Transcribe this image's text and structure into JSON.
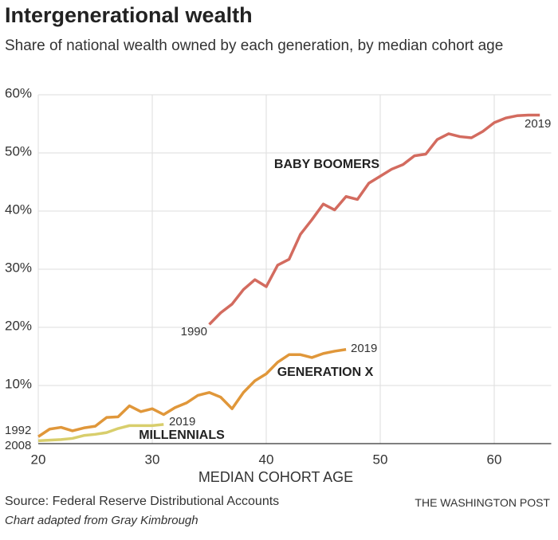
{
  "chart_data": {
    "type": "line",
    "title": "Intergenerational wealth",
    "subtitle": "Share of national wealth owned by each generation, by median cohort age",
    "x_label": "MEDIAN COHORT AGE",
    "source": "Source: Federal Reserve Distributional Accounts",
    "credit": "THE WASHINGTON POST",
    "note": "Chart adapted from Gray Kimbrough",
    "xlim": [
      20,
      65
    ],
    "xticks": [
      20,
      30,
      40,
      50,
      60
    ],
    "ylim": [
      0,
      60
    ],
    "yticks": [
      {
        "value": 10,
        "label": "10%"
      },
      {
        "value": 20,
        "label": "20%"
      },
      {
        "value": 30,
        "label": "30%"
      },
      {
        "value": 40,
        "label": "40%"
      },
      {
        "value": 50,
        "label": "50%"
      },
      {
        "value": 60,
        "label": "60%"
      }
    ],
    "grid": true,
    "series": [
      {
        "name": "BABY BOOMERS",
        "color": "#d36b5f",
        "start_label": "1990",
        "end_label": "2019",
        "x": [
          35,
          36,
          37,
          38,
          39,
          40,
          41,
          42,
          43,
          44,
          45,
          46,
          47,
          48,
          49,
          50,
          51,
          52,
          53,
          54,
          55,
          56,
          57,
          58,
          59,
          60,
          61,
          62,
          63,
          64
        ],
        "values": [
          20.5,
          22.5,
          24,
          26.5,
          28.2,
          27,
          30.7,
          31.7,
          36,
          38.5,
          41.2,
          40.2,
          42.5,
          42,
          44.8,
          46,
          47.2,
          48,
          49.5,
          49.8,
          52.3,
          53.3,
          52.8,
          52.6,
          53.7,
          55.2,
          56,
          56.4,
          56.5,
          56.5
        ]
      },
      {
        "name": "GENERATION X",
        "color": "#e0973a",
        "start_label": "1992",
        "end_label": "2019",
        "x": [
          20,
          21,
          22,
          23,
          24,
          25,
          26,
          27,
          28,
          29,
          30,
          31,
          32,
          33,
          34,
          35,
          36,
          37,
          38,
          39,
          40,
          41,
          42,
          43,
          44,
          45,
          46,
          47
        ],
        "values": [
          1.2,
          2.5,
          2.8,
          2.2,
          2.7,
          3,
          4.5,
          4.6,
          6.5,
          5.5,
          6,
          5,
          6.2,
          7,
          8.3,
          8.8,
          8,
          6,
          8.8,
          10.8,
          12,
          14,
          15.3,
          15.3,
          14.8,
          15.5,
          15.9,
          16.2
        ]
      },
      {
        "name": "MILLENNIALS",
        "color": "#d8ce6c",
        "start_label": "2008",
        "end_label": "2019",
        "x": [
          20,
          21,
          22,
          23,
          24,
          25,
          26,
          27,
          28,
          29,
          30,
          31
        ],
        "values": [
          0.5,
          0.6,
          0.7,
          0.9,
          1.4,
          1.6,
          1.9,
          2.6,
          3.1,
          3.1,
          3.1,
          3.3
        ]
      }
    ]
  }
}
